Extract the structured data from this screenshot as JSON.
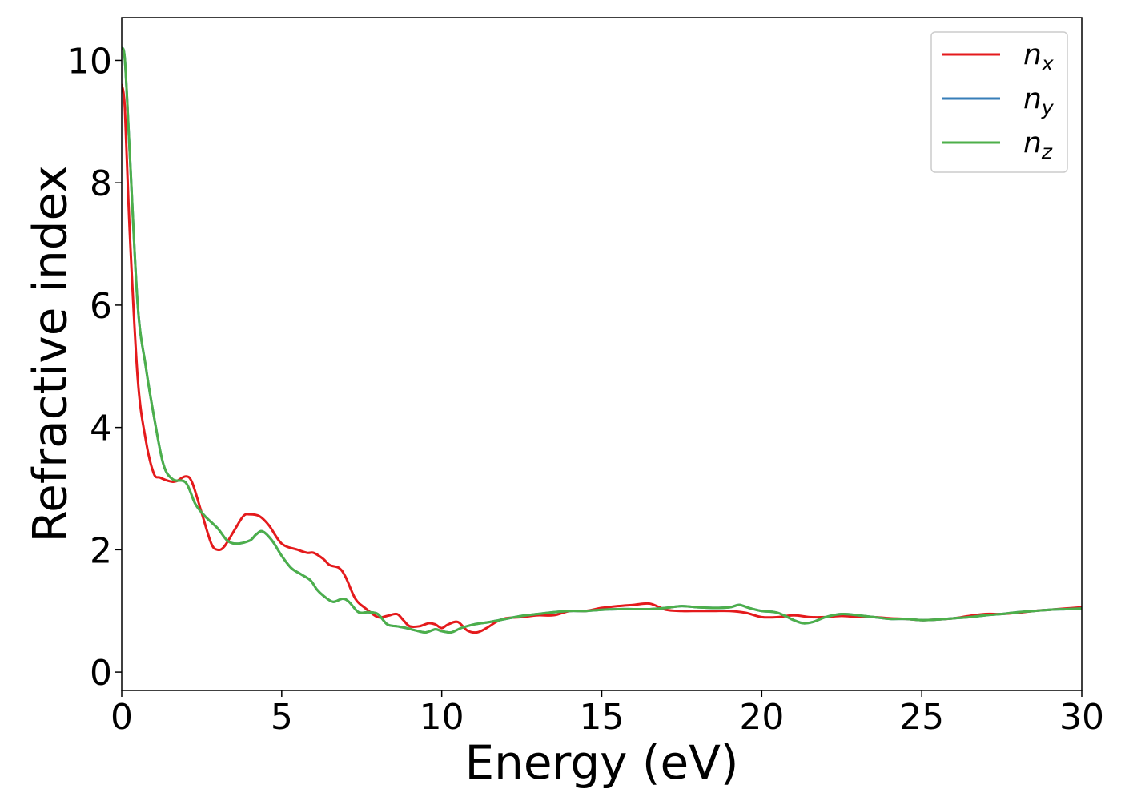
{
  "chart_data": {
    "type": "line",
    "xlabel": "Energy (eV)",
    "ylabel": "Refractive index",
    "xlim": [
      0,
      30
    ],
    "ylim": [
      -0.3,
      10.7
    ],
    "xticks": [
      0,
      5,
      10,
      15,
      20,
      25,
      30
    ],
    "yticks": [
      0,
      2,
      4,
      6,
      8,
      10
    ],
    "grid": false,
    "legend_position": "top-right",
    "series": [
      {
        "name": "n",
        "sub": "x",
        "color": "#e41a1c",
        "x": [
          0,
          0.1,
          0.25,
          0.5,
          0.75,
          1.0,
          1.2,
          1.5,
          1.7,
          2.0,
          2.2,
          2.5,
          2.8,
          3.0,
          3.2,
          3.5,
          3.8,
          4.0,
          4.3,
          4.6,
          5.0,
          5.5,
          5.8,
          6.0,
          6.3,
          6.5,
          6.8,
          7.0,
          7.3,
          7.6,
          8.0,
          8.3,
          8.6,
          8.8,
          9.0,
          9.3,
          9.6,
          9.8,
          10.0,
          10.2,
          10.5,
          10.8,
          11.1,
          11.4,
          11.7,
          12.0,
          12.5,
          13.0,
          13.5,
          14.0,
          14.5,
          15.0,
          15.5,
          16.0,
          16.5,
          17.0,
          17.5,
          18.0,
          18.5,
          19.0,
          19.5,
          20.0,
          20.5,
          21.0,
          21.5,
          22.0,
          22.5,
          23.0,
          23.5,
          24.0,
          24.5,
          25.0,
          25.5,
          26.0,
          26.5,
          27.0,
          27.5,
          28.0,
          28.5,
          29.0,
          29.5,
          30.0
        ],
        "y": [
          9.6,
          9.2,
          7.2,
          4.8,
          3.8,
          3.25,
          3.18,
          3.12,
          3.12,
          3.2,
          3.1,
          2.6,
          2.1,
          2.0,
          2.05,
          2.3,
          2.55,
          2.58,
          2.55,
          2.4,
          2.1,
          2.0,
          1.95,
          1.95,
          1.85,
          1.75,
          1.7,
          1.55,
          1.2,
          1.05,
          0.9,
          0.92,
          0.95,
          0.85,
          0.75,
          0.75,
          0.8,
          0.78,
          0.72,
          0.78,
          0.82,
          0.68,
          0.65,
          0.72,
          0.82,
          0.88,
          0.9,
          0.93,
          0.93,
          1.0,
          1.0,
          1.05,
          1.08,
          1.1,
          1.12,
          1.02,
          1.0,
          1.0,
          1.0,
          1.0,
          0.97,
          0.9,
          0.9,
          0.93,
          0.9,
          0.9,
          0.92,
          0.9,
          0.9,
          0.88,
          0.87,
          0.85,
          0.86,
          0.88,
          0.92,
          0.95,
          0.95,
          0.97,
          1.0,
          1.02,
          1.04,
          1.06
        ]
      },
      {
        "name": "n",
        "sub": "y",
        "color": "#377eb8",
        "x": [
          0,
          0.1,
          0.25,
          0.5,
          0.75,
          1.0,
          1.3,
          1.6,
          2.0,
          2.3,
          2.6,
          3.0,
          3.3,
          3.6,
          4.0,
          4.2,
          4.4,
          4.7,
          5.0,
          5.3,
          5.6,
          5.9,
          6.1,
          6.3,
          6.6,
          6.9,
          7.1,
          7.4,
          7.7,
          8.0,
          8.3,
          8.6,
          8.9,
          9.2,
          9.5,
          9.8,
          10.0,
          10.3,
          10.6,
          11.0,
          11.5,
          12.0,
          12.5,
          13.0,
          13.5,
          14.0,
          14.5,
          15.0,
          15.5,
          16.0,
          16.5,
          17.0,
          17.5,
          18.0,
          18.5,
          19.0,
          19.3,
          19.6,
          20.0,
          20.5,
          21.0,
          21.3,
          21.6,
          22.0,
          22.5,
          23.0,
          23.5,
          24.0,
          24.5,
          25.0,
          25.5,
          26.0,
          26.5,
          27.0,
          27.5,
          28.0,
          28.5,
          29.0,
          29.5,
          30.0
        ],
        "y": [
          10.2,
          10.0,
          8.5,
          6.0,
          5.0,
          4.2,
          3.4,
          3.15,
          3.1,
          2.75,
          2.55,
          2.35,
          2.15,
          2.1,
          2.15,
          2.25,
          2.3,
          2.15,
          1.9,
          1.7,
          1.6,
          1.5,
          1.35,
          1.25,
          1.15,
          1.2,
          1.15,
          0.98,
          0.98,
          0.95,
          0.78,
          0.75,
          0.72,
          0.68,
          0.65,
          0.7,
          0.67,
          0.65,
          0.72,
          0.78,
          0.82,
          0.87,
          0.92,
          0.95,
          0.98,
          1.0,
          1.0,
          1.02,
          1.03,
          1.03,
          1.03,
          1.05,
          1.08,
          1.06,
          1.05,
          1.06,
          1.1,
          1.05,
          1.0,
          0.97,
          0.85,
          0.8,
          0.82,
          0.9,
          0.95,
          0.93,
          0.9,
          0.87,
          0.87,
          0.85,
          0.86,
          0.88,
          0.9,
          0.93,
          0.95,
          0.98,
          1.0,
          1.02,
          1.03,
          1.04
        ]
      },
      {
        "name": "n",
        "sub": "z",
        "color": "#4daf4a",
        "x": [
          0,
          0.1,
          0.25,
          0.5,
          0.75,
          1.0,
          1.3,
          1.6,
          2.0,
          2.3,
          2.6,
          3.0,
          3.3,
          3.6,
          4.0,
          4.2,
          4.4,
          4.7,
          5.0,
          5.3,
          5.6,
          5.9,
          6.1,
          6.3,
          6.6,
          6.9,
          7.1,
          7.4,
          7.7,
          8.0,
          8.3,
          8.6,
          8.9,
          9.2,
          9.5,
          9.8,
          10.0,
          10.3,
          10.6,
          11.0,
          11.5,
          12.0,
          12.5,
          13.0,
          13.5,
          14.0,
          14.5,
          15.0,
          15.5,
          16.0,
          16.5,
          17.0,
          17.5,
          18.0,
          18.5,
          19.0,
          19.3,
          19.6,
          20.0,
          20.5,
          21.0,
          21.3,
          21.6,
          22.0,
          22.5,
          23.0,
          23.5,
          24.0,
          24.5,
          25.0,
          25.5,
          26.0,
          26.5,
          27.0,
          27.5,
          28.0,
          28.5,
          29.0,
          29.5,
          30.0
        ],
        "y": [
          10.2,
          10.0,
          8.5,
          6.0,
          5.0,
          4.2,
          3.4,
          3.15,
          3.1,
          2.75,
          2.55,
          2.35,
          2.15,
          2.1,
          2.15,
          2.25,
          2.3,
          2.15,
          1.9,
          1.7,
          1.6,
          1.5,
          1.35,
          1.25,
          1.15,
          1.2,
          1.15,
          0.98,
          0.98,
          0.95,
          0.78,
          0.75,
          0.72,
          0.68,
          0.65,
          0.7,
          0.67,
          0.65,
          0.72,
          0.78,
          0.82,
          0.87,
          0.92,
          0.95,
          0.98,
          1.0,
          1.0,
          1.02,
          1.03,
          1.03,
          1.03,
          1.05,
          1.08,
          1.06,
          1.05,
          1.06,
          1.1,
          1.05,
          1.0,
          0.97,
          0.85,
          0.8,
          0.82,
          0.9,
          0.95,
          0.93,
          0.9,
          0.87,
          0.87,
          0.85,
          0.86,
          0.88,
          0.9,
          0.93,
          0.95,
          0.98,
          1.0,
          1.02,
          1.03,
          1.04
        ]
      }
    ]
  }
}
